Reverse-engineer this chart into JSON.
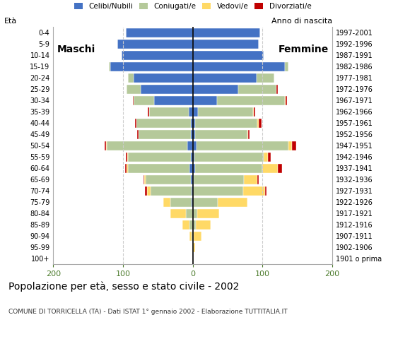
{
  "age_groups": [
    "100+",
    "95-99",
    "90-94",
    "85-89",
    "80-84",
    "75-79",
    "70-74",
    "65-69",
    "60-64",
    "55-59",
    "50-54",
    "45-49",
    "40-44",
    "35-39",
    "30-34",
    "25-29",
    "20-24",
    "15-19",
    "10-14",
    "5-9",
    "0-4"
  ],
  "birth_years": [
    "1901 o prima",
    "1902-1906",
    "1907-1911",
    "1912-1916",
    "1917-1921",
    "1922-1926",
    "1927-1931",
    "1932-1936",
    "1937-1941",
    "1942-1946",
    "1947-1951",
    "1952-1956",
    "1957-1961",
    "1962-1966",
    "1967-1971",
    "1972-1976",
    "1977-1981",
    "1982-1986",
    "1987-1991",
    "1992-1996",
    "1997-2001"
  ],
  "colors": {
    "celibe": "#4472c4",
    "coniugato": "#b5c99a",
    "vedovo": "#ffd966",
    "divorziato": "#c00000"
  },
  "males": {
    "celibe": [
      0,
      0,
      0,
      0,
      0,
      2,
      2,
      3,
      5,
      3,
      8,
      3,
      3,
      6,
      55,
      75,
      85,
      118,
      102,
      108,
      96
    ],
    "coniugato": [
      0,
      0,
      2,
      5,
      10,
      30,
      58,
      65,
      88,
      90,
      115,
      75,
      78,
      56,
      30,
      20,
      8,
      2,
      0,
      0,
      0
    ],
    "vedovo": [
      0,
      0,
      3,
      10,
      22,
      10,
      6,
      2,
      2,
      1,
      1,
      0,
      0,
      0,
      0,
      0,
      0,
      0,
      0,
      0,
      0
    ],
    "divorziato": [
      0,
      0,
      0,
      0,
      0,
      0,
      3,
      1,
      2,
      2,
      2,
      2,
      2,
      2,
      1,
      0,
      0,
      0,
      0,
      0,
      0
    ]
  },
  "females": {
    "celibe": [
      0,
      0,
      0,
      0,
      0,
      0,
      0,
      1,
      3,
      2,
      5,
      3,
      3,
      7,
      35,
      65,
      92,
      132,
      102,
      95,
      97
    ],
    "coniugato": [
      0,
      0,
      1,
      4,
      6,
      36,
      72,
      72,
      97,
      100,
      132,
      75,
      90,
      80,
      97,
      55,
      25,
      5,
      0,
      0,
      0
    ],
    "vedovo": [
      0,
      3,
      12,
      22,
      32,
      42,
      32,
      20,
      22,
      6,
      5,
      2,
      2,
      1,
      1,
      0,
      0,
      0,
      0,
      0,
      0
    ],
    "divorziato": [
      0,
      0,
      0,
      0,
      0,
      0,
      2,
      2,
      6,
      4,
      6,
      2,
      4,
      2,
      2,
      2,
      0,
      0,
      0,
      0,
      0
    ]
  },
  "title": "Popolazione per età, sesso e stato civile - 2002",
  "subtitle": "COMUNE DI TORRICELLA (TA) - Dati ISTAT 1° gennaio 2002 - Elaborazione TUTTITALIA.IT",
  "xlabel_left": "Maschi",
  "xlabel_right": "Femmine",
  "ylabel_left": "Età",
  "ylabel_right": "Anno di nascita",
  "xlim": 200,
  "background_color": "#ffffff",
  "grid_color": "#cccccc",
  "xtick_color": "#4a7a2a"
}
